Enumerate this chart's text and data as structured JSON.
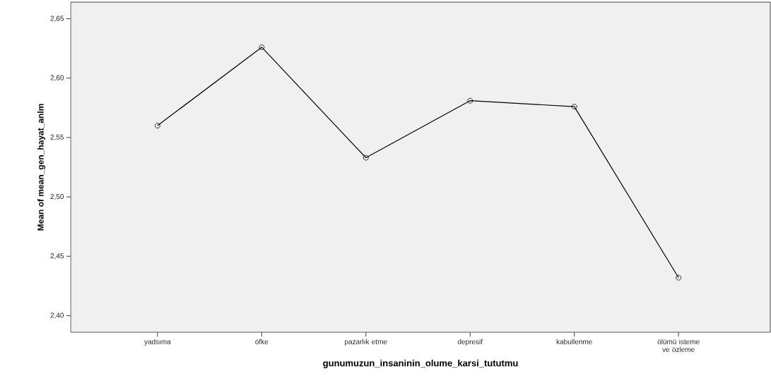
{
  "chart_data": {
    "type": "line",
    "xlabel": "gunumuzun_insaninin_olume_karsi_tututmu",
    "ylabel": "Mean of mean_gen_hayat_anlm",
    "categories": [
      "yadsıma",
      "öfke",
      "pazarlık etme",
      "depresif",
      "kabullenme",
      "ölümü isteme ve özleme"
    ],
    "series": [
      {
        "color": "#000000",
        "values": [
          2.56,
          2.626,
          2.533,
          2.581,
          2.576,
          2.432
        ]
      }
    ],
    "ylim": [
      2.386,
      2.664
    ],
    "yticks": [
      {
        "value": 2.4,
        "label": "2,40"
      },
      {
        "value": 2.45,
        "label": "2,45"
      },
      {
        "value": 2.5,
        "label": "2,50"
      },
      {
        "value": 2.55,
        "label": "2,55"
      },
      {
        "value": 2.6,
        "label": "2,60"
      },
      {
        "value": 2.65,
        "label": "2,65"
      }
    ],
    "marker": "circle",
    "line_style": "solid"
  }
}
